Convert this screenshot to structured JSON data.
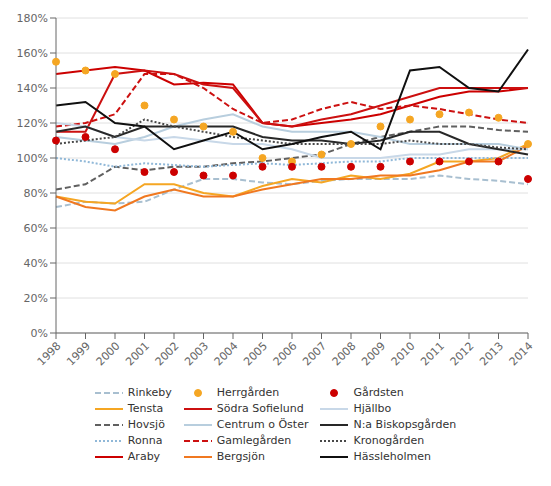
{
  "chart_data": {
    "type": "line",
    "categories": [
      "1998",
      "1999",
      "2000",
      "2001",
      "2002",
      "2003",
      "2004",
      "2005",
      "2006",
      "2007",
      "2008",
      "2009",
      "2010",
      "2011",
      "2012",
      "2013",
      "2014"
    ],
    "series": [
      {
        "name": "Rinkeby",
        "color": "#a8bfd0",
        "line_style": "dashed",
        "marker": "none",
        "values": [
          72,
          75,
          74,
          75,
          82,
          88,
          88,
          86,
          85,
          87,
          88,
          88,
          88,
          90,
          88,
          87,
          85
        ]
      },
      {
        "name": "Tensta",
        "color": "#f5a623",
        "line_style": "solid",
        "marker": "none",
        "values": [
          78,
          75,
          74,
          85,
          85,
          80,
          78,
          84,
          88,
          86,
          90,
          88,
          91,
          98,
          98,
          100,
          108
        ]
      },
      {
        "name": "Hovsjö",
        "color": "#606060",
        "line_style": "dashed",
        "marker": "none",
        "values": [
          82,
          85,
          95,
          93,
          95,
          95,
          97,
          98,
          100,
          102,
          108,
          112,
          115,
          118,
          118,
          116,
          115
        ]
      },
      {
        "name": "Ronna",
        "color": "#90b8d8",
        "line_style": "dotted",
        "marker": "none",
        "values": [
          100,
          98,
          95,
          97,
          96,
          95,
          96,
          97,
          96,
          97,
          98,
          98,
          100,
          100,
          100,
          100,
          100
        ]
      },
      {
        "name": "Araby",
        "color": "#cc0000",
        "line_style": "solid",
        "marker": "none",
        "values": [
          148,
          150,
          152,
          150,
          142,
          143,
          142,
          120,
          118,
          120,
          122,
          125,
          130,
          135,
          138,
          138,
          140
        ]
      },
      {
        "name": "Herrgården",
        "color": "#f5a623",
        "line_style": "none",
        "marker": "circle",
        "values": [
          155,
          150,
          148,
          130,
          122,
          118,
          115,
          100,
          98,
          102,
          108,
          118,
          122,
          125,
          126,
          123,
          108
        ]
      },
      {
        "name": "Södra Sofielund",
        "color": "#cc1010",
        "line_style": "solid",
        "marker": "none",
        "values": [
          115,
          115,
          148,
          150,
          148,
          142,
          140,
          120,
          118,
          122,
          125,
          130,
          135,
          140,
          140,
          140,
          140
        ]
      },
      {
        "name": "Centrum o Öster",
        "color": "#b8cede",
        "line_style": "solid",
        "marker": "none",
        "values": [
          112,
          110,
          108,
          112,
          118,
          122,
          125,
          118,
          115,
          115,
          115,
          112,
          108,
          108,
          108,
          108,
          105
        ]
      },
      {
        "name": "Gamlegården",
        "color": "#cc1010",
        "line_style": "dashed",
        "marker": "none",
        "values": [
          118,
          120,
          125,
          148,
          148,
          140,
          128,
          120,
          122,
          128,
          132,
          128,
          130,
          128,
          125,
          122,
          120
        ]
      },
      {
        "name": "Bergsjön",
        "color": "#f07820",
        "line_style": "solid",
        "marker": "none",
        "values": [
          78,
          72,
          70,
          78,
          82,
          78,
          78,
          82,
          85,
          88,
          88,
          90,
          90,
          93,
          98,
          98,
          107
        ]
      },
      {
        "name": "Gårdsten",
        "color": "#cc0000",
        "line_style": "none",
        "marker": "circle",
        "values": [
          110,
          112,
          105,
          92,
          92,
          90,
          90,
          95,
          95,
          95,
          95,
          95,
          98,
          98,
          98,
          98,
          88
        ]
      },
      {
        "name": "Hjällbo",
        "color": "#c8d8e8",
        "line_style": "solid",
        "marker": "none",
        "values": [
          120,
          118,
          112,
          110,
          112,
          110,
          108,
          108,
          105,
          100,
          100,
          100,
          102,
          102,
          105,
          105,
          105
        ]
      },
      {
        "name": "N:a Biskopsgården",
        "color": "#282828",
        "line_style": "solid",
        "marker": "none",
        "values": [
          115,
          118,
          112,
          118,
          118,
          118,
          118,
          112,
          110,
          110,
          108,
          110,
          115,
          115,
          108,
          105,
          102
        ]
      },
      {
        "name": "Kronogården",
        "color": "#484848",
        "line_style": "dotted",
        "marker": "none",
        "values": [
          108,
          110,
          112,
          122,
          118,
          115,
          112,
          110,
          108,
          108,
          108,
          108,
          110,
          108,
          108,
          106,
          105
        ]
      },
      {
        "name": "Hässleholmen",
        "color": "#101010",
        "line_style": "solid",
        "marker": "none",
        "values": [
          130,
          132,
          120,
          118,
          105,
          110,
          115,
          105,
          108,
          112,
          115,
          105,
          150,
          152,
          140,
          138,
          162
        ]
      }
    ],
    "ylim": [
      0,
      180
    ],
    "yticks": [
      {
        "value": 0,
        "label": "0%"
      },
      {
        "value": 20,
        "label": "20%"
      },
      {
        "value": 40,
        "label": "40%"
      },
      {
        "value": 60,
        "label": "60%"
      },
      {
        "value": 80,
        "label": "80%"
      },
      {
        "value": 100,
        "label": "100%"
      },
      {
        "value": 120,
        "label": "120%"
      },
      {
        "value": 140,
        "label": "140%"
      },
      {
        "value": 160,
        "label": "160%"
      },
      {
        "value": 180,
        "label": "180%"
      }
    ],
    "grid": "y",
    "legend": "bottom"
  }
}
